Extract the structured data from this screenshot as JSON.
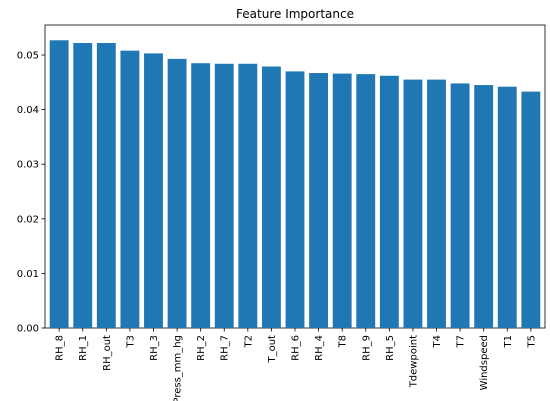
{
  "chart_data": {
    "type": "bar",
    "title": "Feature Importance",
    "xlabel": "",
    "ylabel": "",
    "categories": [
      "RH_8",
      "RH_1",
      "RH_out",
      "T3",
      "RH_3",
      "Press_mm_hg",
      "RH_2",
      "RH_7",
      "T2",
      "T_out",
      "RH_6",
      "RH_4",
      "T8",
      "RH_9",
      "RH_5",
      "Tdewpoint",
      "T4",
      "T7",
      "Windspeed",
      "T1",
      "T5"
    ],
    "values": [
      0.0527,
      0.0522,
      0.0522,
      0.0508,
      0.0503,
      0.0493,
      0.0485,
      0.0484,
      0.0484,
      0.0479,
      0.047,
      0.0467,
      0.0466,
      0.0465,
      0.0462,
      0.0455,
      0.0455,
      0.0448,
      0.0445,
      0.0442,
      0.0433
    ],
    "ylim": [
      0,
      0.0555
    ],
    "yticks": [
      0.0,
      0.01,
      0.02,
      0.03,
      0.04,
      0.05
    ],
    "ytick_labels": [
      "0.00",
      "0.01",
      "0.02",
      "0.03",
      "0.04",
      "0.05"
    ],
    "bar_color": "#1f77b4",
    "grid": false,
    "legend": false
  }
}
